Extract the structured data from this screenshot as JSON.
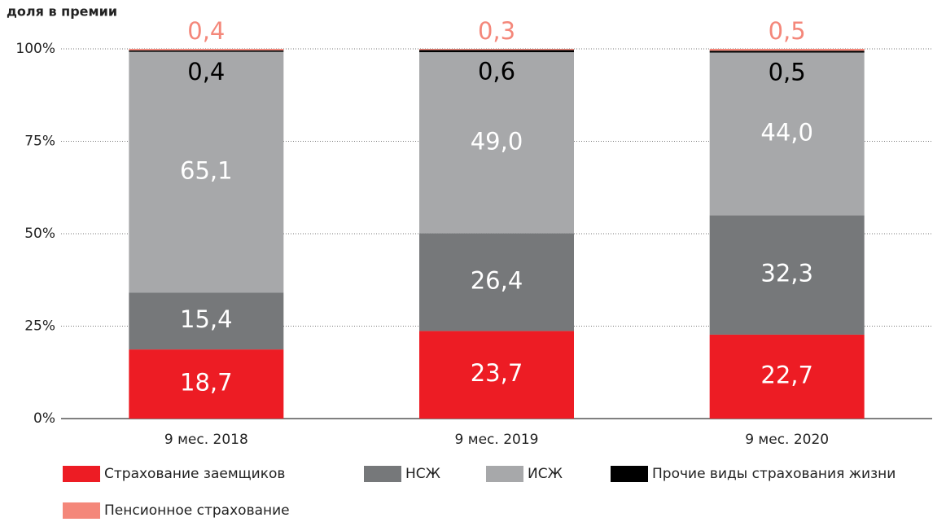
{
  "chart_data": {
    "type": "stacked_bar",
    "title": "доля в премии",
    "categories": [
      "9 мес. 2018",
      "9 мес. 2019",
      "9 мес. 2020"
    ],
    "series": [
      {
        "name": "Страхование заемщиков",
        "color": "#ed1c24",
        "values": [
          18.7,
          23.7,
          22.7
        ],
        "value_labels": [
          "18,7",
          "23,7",
          "22,7"
        ]
      },
      {
        "name": "НСЖ",
        "color": "#76787a",
        "values": [
          15.4,
          26.4,
          32.3
        ],
        "value_labels": [
          "15,4",
          "26,4",
          "32,3"
        ]
      },
      {
        "name": "ИСЖ",
        "color": "#a7a8aa",
        "values": [
          65.1,
          49.0,
          44.0
        ],
        "value_labels": [
          "65,1",
          "49,0",
          "44,0"
        ]
      },
      {
        "name": "Прочие виды страхования жизни",
        "color": "#000000",
        "values": [
          0.4,
          0.6,
          0.5
        ],
        "value_labels": [
          "0,4",
          "0,6",
          "0,5"
        ]
      },
      {
        "name": "Пенсионное страхование",
        "color": "#f4877a",
        "values": [
          0.4,
          0.3,
          0.5
        ],
        "value_labels": [
          "0,4",
          "0,3",
          "0,5"
        ]
      }
    ],
    "ylim": [
      0,
      100
    ],
    "yticks": [
      {
        "value": 0,
        "label": "0%"
      },
      {
        "value": 25,
        "label": "25%"
      },
      {
        "value": 50,
        "label": "50%"
      },
      {
        "value": 75,
        "label": "75%"
      },
      {
        "value": 100,
        "label": "100%"
      }
    ],
    "grid": true
  }
}
